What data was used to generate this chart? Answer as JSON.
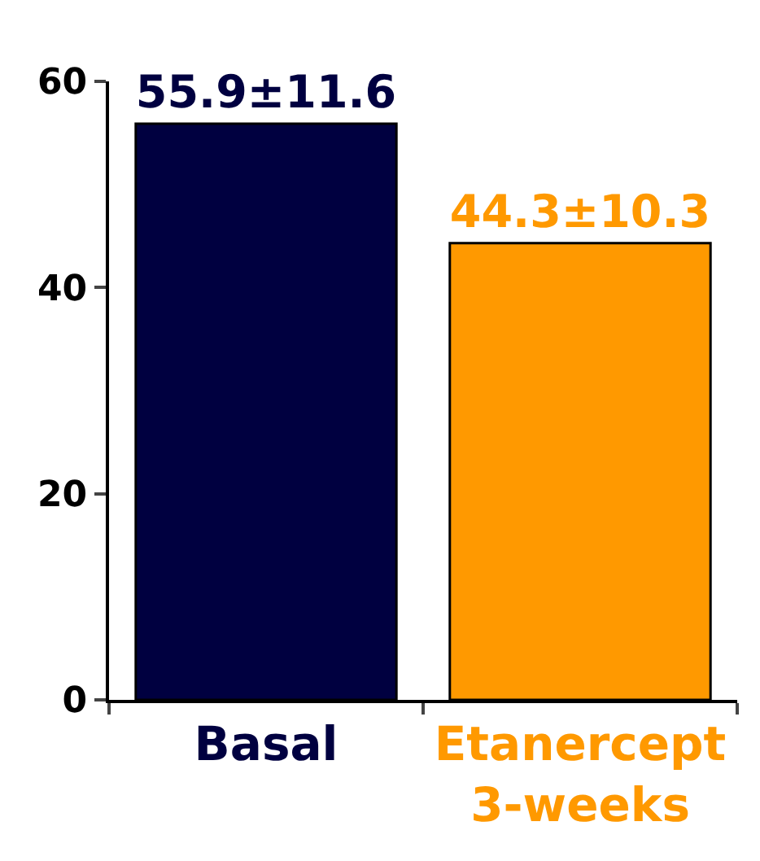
{
  "chart_data": {
    "type": "bar",
    "categories": [
      "Basal",
      "Etanercept\n3-weeks"
    ],
    "values": [
      55.9,
      44.3
    ],
    "colors": [
      "#000040",
      "#ff9900"
    ],
    "value_labels": [
      "55.9±11.6",
      "44.3±10.3"
    ],
    "ylim": [
      0,
      60
    ],
    "yticks": [
      0,
      20,
      40,
      60
    ]
  }
}
